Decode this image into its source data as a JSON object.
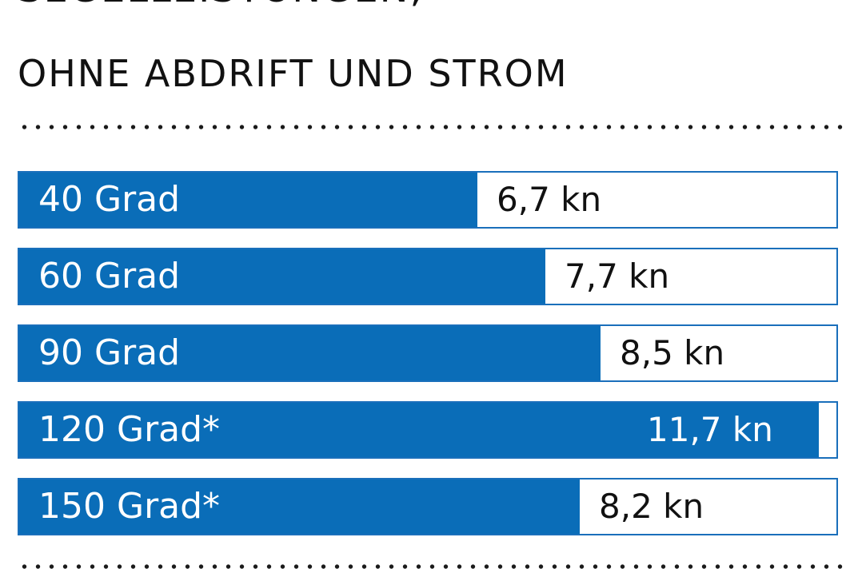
{
  "title": {
    "line1": "SEGELLEISTUNGEN,",
    "line2": "OHNE ABDRIFT UND STROM"
  },
  "chart_data": {
    "type": "bar",
    "orientation": "horizontal",
    "categories": [
      "40 Grad",
      "60 Grad",
      "90 Grad",
      "120 Grad*",
      "150 Grad*"
    ],
    "values": [
      6.7,
      7.7,
      8.5,
      11.7,
      8.2
    ],
    "value_labels": [
      "6,7 kn",
      "7,7 kn",
      "8,5 kn",
      "11,7 kn",
      "8,2 kn"
    ],
    "unit": "kn",
    "xlim": [
      0,
      12
    ],
    "grid": false,
    "legend": "none",
    "colors": {
      "bar": "#0a6db8",
      "border": "#1a6fbb",
      "background": "#ffffff",
      "text": "#111111"
    }
  }
}
